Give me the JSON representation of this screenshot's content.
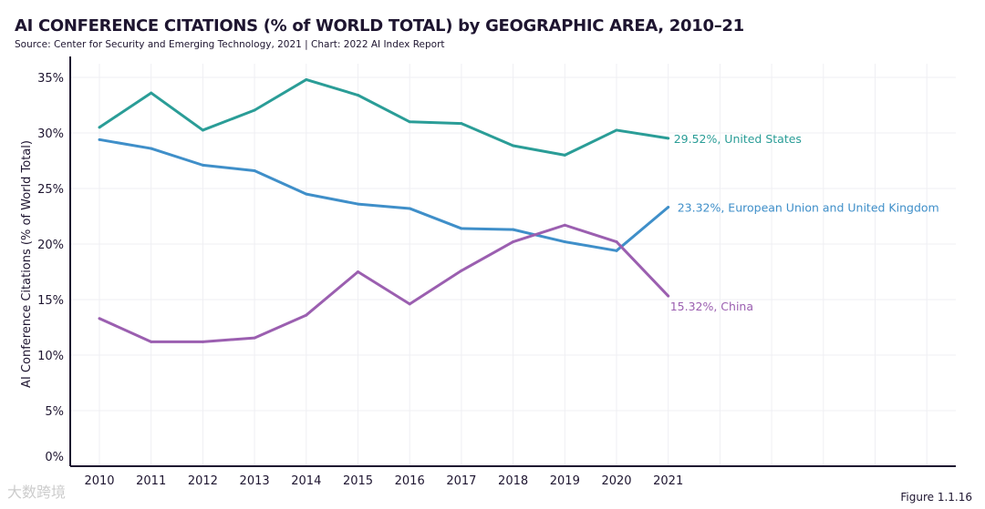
{
  "title": "AI CONFERENCE CITATIONS (% of WORLD TOTAL) by GEOGRAPHIC AREA, 2010–21",
  "subtitle": "Source: Center for Security and Emerging Technology, 2021 | Chart: 2022 AI Index Report",
  "figure_label": "Figure 1.1.16",
  "watermark": "大数跨境",
  "chart_data": {
    "type": "line",
    "title": "AI CONFERENCE CITATIONS (% of WORLD TOTAL) by GEOGRAPHIC AREA, 2010–21",
    "xlabel": "",
    "ylabel": "AI Conference Citations (% of World Total)",
    "x": [
      2010,
      2011,
      2012,
      2013,
      2014,
      2015,
      2016,
      2017,
      2018,
      2019,
      2020,
      2021
    ],
    "ylim": [
      0,
      35
    ],
    "yticks": [
      "0%",
      "5%",
      "10%",
      "15%",
      "20%",
      "25%",
      "30%",
      "35%"
    ],
    "grid": true,
    "series": [
      {
        "name": "United States",
        "color": "#2a9d97",
        "label": "29.52%, United States",
        "values": [
          30.5,
          33.6,
          30.25,
          32.05,
          34.8,
          33.4,
          31.0,
          30.85,
          28.85,
          28.0,
          30.25,
          29.52
        ]
      },
      {
        "name": "European Union and United Kingdom",
        "color": "#3f8fc9",
        "label": "23.32%, European Union and United Kingdom",
        "values": [
          29.4,
          28.6,
          27.1,
          26.6,
          24.5,
          23.6,
          23.2,
          21.4,
          21.3,
          20.2,
          19.4,
          23.32
        ]
      },
      {
        "name": "China",
        "color": "#9b5fb0",
        "label": "15.32%, China",
        "values": [
          13.3,
          11.2,
          11.2,
          11.55,
          13.6,
          17.5,
          14.6,
          17.6,
          20.2,
          21.7,
          20.2,
          15.32
        ]
      }
    ]
  }
}
